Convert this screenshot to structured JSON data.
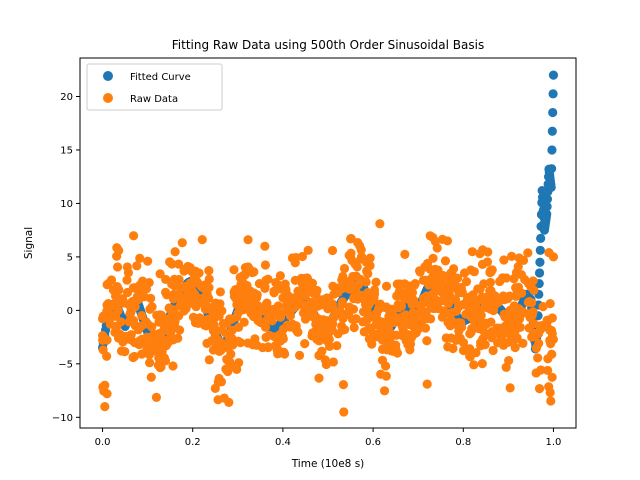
{
  "chart_data": {
    "type": "scatter",
    "title": "Fitting Raw Data using 500th Order Sinusoidal Basis",
    "xlabel": "Time (10e8 s)",
    "ylabel": "Signal",
    "xlim": [
      -0.05,
      1.05
    ],
    "ylim": [
      -11,
      23.6
    ],
    "xticks": [
      0.0,
      0.2,
      0.4,
      0.6,
      0.8,
      1.0
    ],
    "xtick_labels": [
      "0.0",
      "0.2",
      "0.4",
      "0.6",
      "0.8",
      "1.0"
    ],
    "yticks": [
      -10,
      -5,
      0,
      5,
      10,
      15,
      20
    ],
    "ytick_labels": [
      "−10",
      "−5",
      "0",
      "5",
      "10",
      "15",
      "20"
    ],
    "grid": false,
    "legend": "upper-left",
    "series": [
      {
        "name": "Fitted Curve",
        "color": "#1f77b4",
        "x": [
          0.0,
          0.01,
          0.02,
          0.03,
          0.04,
          0.05,
          0.06,
          0.07,
          0.08,
          0.09,
          0.1,
          0.11,
          0.12,
          0.13,
          0.14,
          0.15,
          0.16,
          0.17,
          0.18,
          0.19,
          0.2,
          0.21,
          0.22,
          0.23,
          0.24,
          0.25,
          0.26,
          0.27,
          0.28,
          0.29,
          0.3,
          0.31,
          0.32,
          0.33,
          0.34,
          0.35,
          0.36,
          0.37,
          0.38,
          0.39,
          0.4,
          0.41,
          0.42,
          0.43,
          0.44,
          0.45,
          0.46,
          0.47,
          0.48,
          0.49,
          0.5,
          0.51,
          0.52,
          0.53,
          0.54,
          0.55,
          0.56,
          0.57,
          0.58,
          0.59,
          0.6,
          0.61,
          0.62,
          0.63,
          0.64,
          0.65,
          0.66,
          0.67,
          0.68,
          0.69,
          0.7,
          0.71,
          0.72,
          0.73,
          0.74,
          0.75,
          0.76,
          0.77,
          0.78,
          0.79,
          0.8,
          0.81,
          0.82,
          0.83,
          0.84,
          0.85,
          0.86,
          0.87,
          0.88,
          0.89,
          0.9,
          0.91,
          0.92,
          0.93,
          0.94,
          0.95,
          0.96,
          0.965,
          0.97,
          0.975,
          0.98,
          0.985,
          0.99,
          0.995,
          1.0
        ],
        "y": [
          -3.5,
          -1.0,
          0.5,
          0.6,
          -0.5,
          -1.5,
          -0.5,
          0.8,
          0.5,
          -0.8,
          -2.0,
          -2.8,
          -3.0,
          -2.5,
          -1.5,
          -0.5,
          0.5,
          1.5,
          2.0,
          2.6,
          2.8,
          2.4,
          1.5,
          0.2,
          -1.0,
          -2.2,
          -3.0,
          -3.2,
          -2.5,
          -1.2,
          0.0,
          1.0,
          1.5,
          1.2,
          0.5,
          -0.3,
          -1.0,
          -1.5,
          -1.8,
          -1.5,
          -1.0,
          -0.5,
          0.0,
          0.5,
          0.8,
          1.0,
          0.5,
          -0.5,
          -1.5,
          -2.0,
          -1.5,
          -0.8,
          0.0,
          0.8,
          1.5,
          2.0,
          2.5,
          2.5,
          2.0,
          1.0,
          0.0,
          -1.0,
          -1.5,
          -1.8,
          -1.5,
          -0.8,
          0.0,
          0.5,
          0.2,
          -0.3,
          0.0,
          1.0,
          2.0,
          2.8,
          3.0,
          2.5,
          1.5,
          0.5,
          -0.3,
          -0.8,
          -1.0,
          -0.8,
          -0.5,
          0.0,
          0.3,
          0.5,
          0.8,
          0.5,
          0.2,
          -0.3,
          -0.8,
          -1.0,
          -0.5,
          0.5,
          1.5,
          1.0,
          -3.6,
          -1.5,
          4.5,
          11.2,
          7.5,
          9.0,
          13.2,
          11.5,
          22.0
        ]
      },
      {
        "name": "Raw Data",
        "color": "#ff7f0e",
        "seed": 7,
        "count": 1050,
        "noise_sd": 2.3,
        "outliers": [
          {
            "x": 0.005,
            "y": -9.0
          },
          {
            "x": 0.005,
            "y": -7.0
          },
          {
            "x": 0.01,
            "y": -7.8
          },
          {
            "x": 0.535,
            "y": -9.5
          },
          {
            "x": 0.615,
            "y": 8.1
          },
          {
            "x": 0.36,
            "y": 6.0
          },
          {
            "x": 0.51,
            "y": 5.6
          },
          {
            "x": 0.99,
            "y": 5.4
          },
          {
            "x": 1.0,
            "y": 5.0
          },
          {
            "x": 0.28,
            "y": -8.6
          },
          {
            "x": 0.27,
            "y": -8.2
          },
          {
            "x": 0.72,
            "y": -6.9
          },
          {
            "x": 0.1,
            "y": 4.6
          },
          {
            "x": 0.19,
            "y": 3.9
          }
        ]
      }
    ]
  }
}
